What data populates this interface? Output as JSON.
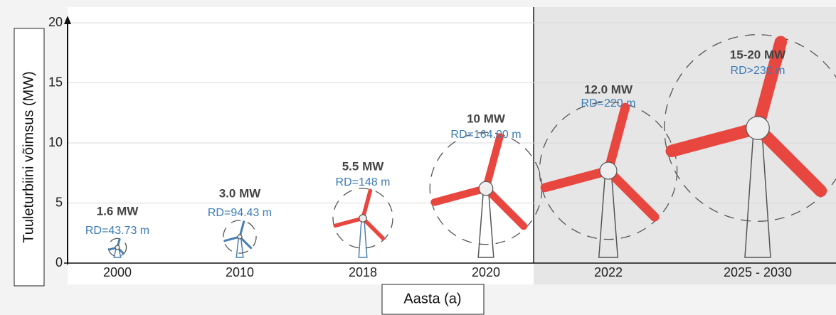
{
  "chart_data": {
    "type": "turbine",
    "y_label": "Tuuleturbiini võimsus (MW)",
    "x_label": "Aasta (a)",
    "ylim": [
      0,
      20
    ],
    "yticks": [
      0,
      5,
      10,
      15,
      20
    ],
    "grid": true,
    "categories": [
      "2000",
      "2010",
      "2018",
      "2020",
      "2022",
      "2025 - 2030"
    ],
    "annotations": [
      {
        "power": "1.6 MW",
        "rd": "RD=43.73 m"
      },
      {
        "power": "3.0 MW",
        "rd": "RD=94.43 m"
      },
      {
        "power": "5.5 MW",
        "rd": "RD=148 m"
      },
      {
        "power": "10 MW",
        "rd": "RD=164.00 m"
      },
      {
        "power": "12.0 MW",
        "rd": "RD=220 m"
      },
      {
        "power": "15-20 MW",
        "rd": "RD>230 m"
      }
    ]
  }
}
